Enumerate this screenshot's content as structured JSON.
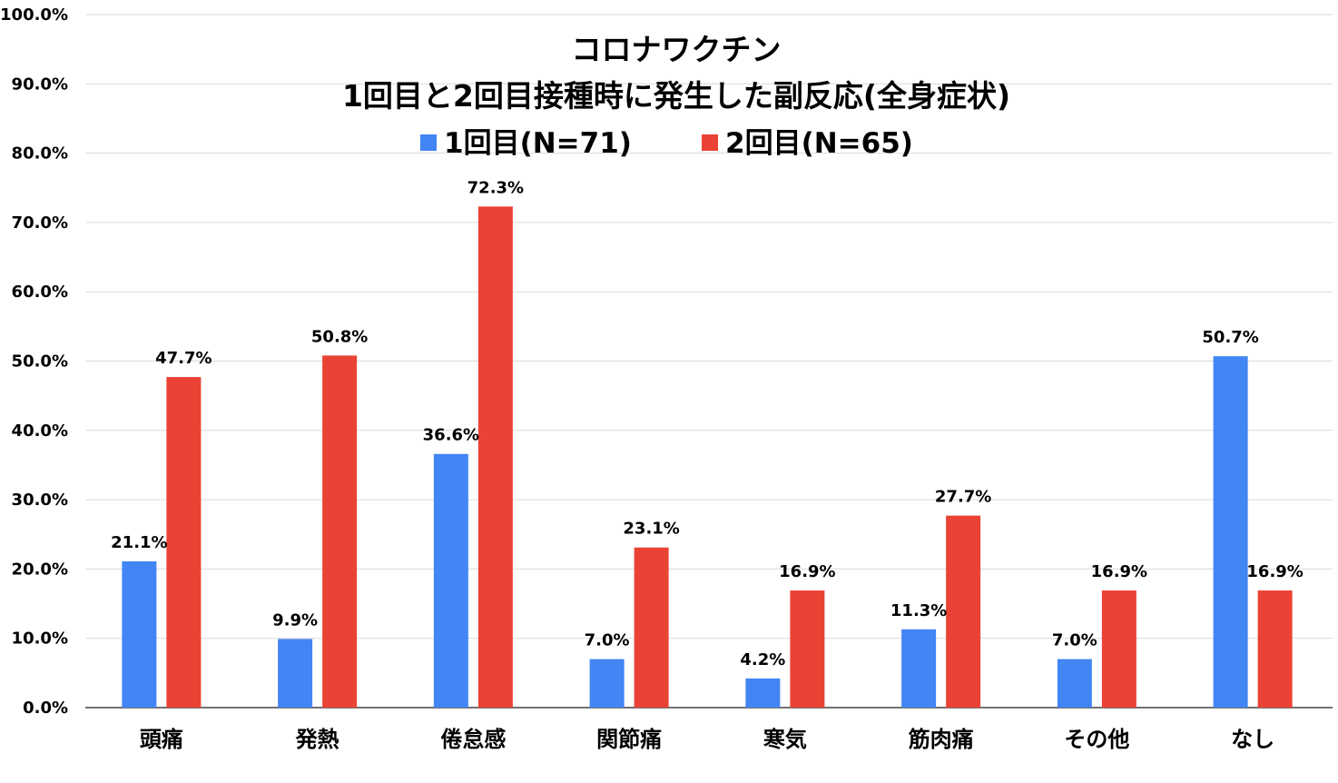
{
  "chart_data": {
    "type": "bar",
    "title_line1": "コロナワクチン",
    "title_line2": "1回目と2回目接種時に発生した副反応(全身症状)",
    "categories": [
      "頭痛",
      "発熱",
      "倦怠感",
      "関節痛",
      "寒気",
      "筋肉痛",
      "その他",
      "なし"
    ],
    "series": [
      {
        "name": "1回目(N=71)",
        "color": "#4285f4",
        "values": [
          21.1,
          9.9,
          36.6,
          7.0,
          4.2,
          11.3,
          7.0,
          50.7
        ],
        "labels": [
          "21.1%",
          "9.9%",
          "36.6%",
          "7.0%",
          "4.2%",
          "11.3%",
          "7.0%",
          "50.7%"
        ]
      },
      {
        "name": "2回目(N=65)",
        "color": "#ea4335",
        "values": [
          47.7,
          50.8,
          72.3,
          23.1,
          16.9,
          27.7,
          16.9,
          16.9
        ],
        "labels": [
          "47.7%",
          "50.8%",
          "72.3%",
          "23.1%",
          "16.9%",
          "27.7%",
          "16.9%",
          "16.9%"
        ]
      }
    ],
    "ylim": [
      0,
      100
    ],
    "yticks": [
      "0.0%",
      "10.0%",
      "20.0%",
      "30.0%",
      "40.0%",
      "50.0%",
      "60.0%",
      "70.0%",
      "80.0%",
      "90.0%",
      "100.0%"
    ],
    "grid": true,
    "legend_position": "top-center",
    "xlabel": "",
    "ylabel": ""
  }
}
